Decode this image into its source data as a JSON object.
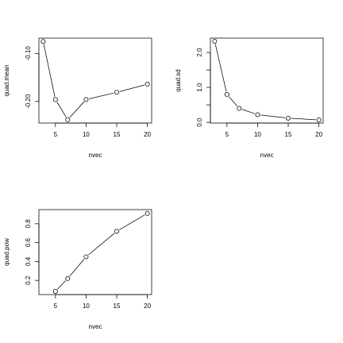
{
  "chart_data": [
    {
      "type": "line",
      "markers": "open-circle",
      "xlabel": "nvec",
      "ylabel": "quad.mean",
      "x": [
        3,
        5,
        7,
        10,
        15,
        20
      ],
      "y": [
        -0.075,
        -0.196,
        -0.238,
        -0.196,
        -0.181,
        -0.164
      ],
      "xlim": [
        2.3,
        20.7
      ],
      "ylim": [
        -0.245,
        -0.068
      ],
      "xticks": [
        5,
        10,
        15,
        20
      ],
      "xtick_labels": [
        "5",
        "10",
        "15",
        "20"
      ],
      "yticks": [
        -0.2,
        -0.1
      ],
      "ytick_labels": [
        "-0.20",
        "-0.10"
      ],
      "grid": false
    },
    {
      "type": "line",
      "markers": "open-circle",
      "xlabel": "nvec",
      "ylabel": "quad.sd",
      "x": [
        3,
        5,
        7,
        10,
        15,
        20
      ],
      "y": [
        2.32,
        0.8,
        0.4,
        0.22,
        0.12,
        0.07
      ],
      "xlim": [
        2.3,
        20.7
      ],
      "ylim": [
        -0.02,
        2.41
      ],
      "xticks": [
        5,
        10,
        15,
        20
      ],
      "xtick_labels": [
        "5",
        "10",
        "15",
        "20"
      ],
      "yticks": [
        0.0,
        0.5,
        1.0,
        1.5,
        2.0
      ],
      "ytick_labels": [
        "0.0",
        "",
        "1.0",
        "",
        "2.0"
      ],
      "grid": false
    },
    {
      "type": "line",
      "markers": "open-circle",
      "xlabel": "nvec",
      "ylabel": "quad.pow",
      "x": [
        5,
        7,
        10,
        15,
        20
      ],
      "y": [
        0.085,
        0.22,
        0.45,
        0.72,
        0.91
      ],
      "xlim": [
        2.3,
        20.7
      ],
      "ylim": [
        0.05,
        0.95
      ],
      "xticks": [
        5,
        10,
        15,
        20
      ],
      "xtick_labels": [
        "5",
        "10",
        "15",
        "20"
      ],
      "yticks": [
        0.2,
        0.4,
        0.6,
        0.8
      ],
      "ytick_labels": [
        "0.2",
        "0.4",
        "0.6",
        "0.8"
      ],
      "grid": false
    }
  ]
}
